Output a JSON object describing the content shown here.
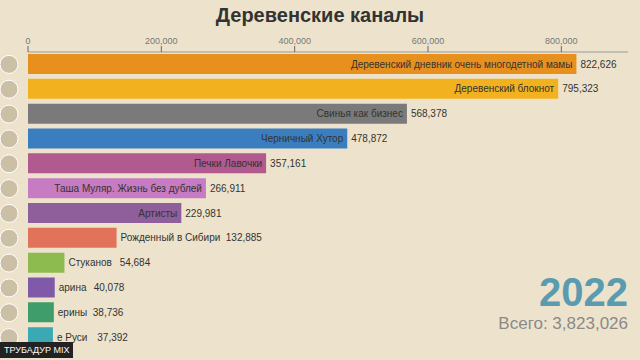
{
  "chart_data": {
    "type": "bar",
    "title": "Деревенские каналы",
    "orientation": "horizontal",
    "categories": [
      "Деревенский дневник очень многодетной мамы",
      "Деревенский блокнот",
      "Свинья как бизнес",
      "Черничный Хутор",
      "Печки Лавочки",
      "Таша Муляр. Жизнь без дублей",
      "Артисты",
      "Рожденный в Сибири",
      "Стуканов",
      "арина",
      "ерины",
      "е Руси"
    ],
    "values": [
      822626,
      795323,
      568378,
      478872,
      357161,
      266911,
      229981,
      132885,
      54684,
      40078,
      38736,
      37392
    ],
    "value_labels": [
      "822,626",
      "795,323",
      "568,378",
      "478,872",
      "357,161",
      "266,911",
      "229,981",
      "132,885",
      "54,684",
      "40,078",
      "38,736",
      "37,392"
    ],
    "colors": [
      "#e8901e",
      "#f2b21f",
      "#7a7a7a",
      "#3a7ebf",
      "#b05a8f",
      "#c77bc3",
      "#8e5f9b",
      "#e0735a",
      "#8dbb4f",
      "#7e5aa8",
      "#3f9c6b",
      "#3aa9b4"
    ],
    "xlim": [
      0,
      900000
    ],
    "xticks": [
      0,
      {
        "value": 200000,
        "label": "200,000"
      },
      {
        "value": 400000,
        "label": "400,000"
      },
      {
        "value": 600000,
        "label": "600,000"
      },
      {
        "value": 800000,
        "label": "800,000"
      }
    ],
    "data_labels": true,
    "tick_labels": "x",
    "grid": false,
    "annotations": [
      "2022",
      "Всего: 3,823,026",
      "ТРУБАДУР MIX"
    ]
  }
}
